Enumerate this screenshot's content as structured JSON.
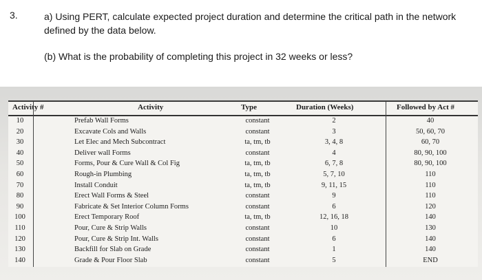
{
  "question": {
    "number": "3.",
    "part_a": "a) Using PERT, calculate expected project duration and determine the critical path in the network defined by the data below.",
    "part_b": "(b) What is the probability of completing this project in 32 weeks or less?"
  },
  "table": {
    "headers": {
      "activity": "Activity #",
      "description": "Activity",
      "type": "Type",
      "duration": "Duration (Weeks)",
      "followed_by": "Followed by Act #"
    },
    "rows": [
      {
        "activity": "10",
        "description": "Prefab Wall Forms",
        "type": "constant",
        "duration": "2",
        "followed_by": "40"
      },
      {
        "activity": "20",
        "description": "Excavate Cols and Walls",
        "type": "constant",
        "duration": "3",
        "followed_by": "50, 60, 70"
      },
      {
        "activity": "30",
        "description": "Let Elec and Mech Subcontract",
        "type": "ta, tm, tb",
        "duration": "3, 4, 8",
        "followed_by": "60, 70"
      },
      {
        "activity": "40",
        "description": "Deliver wall Forms",
        "type": "constant",
        "duration": "4",
        "followed_by": "80, 90, 100"
      },
      {
        "activity": "50",
        "description": "Forms, Pour & Cure Wall & Col Fig",
        "type": "ta, tm, tb",
        "duration": "6, 7, 8",
        "followed_by": "80, 90, 100"
      },
      {
        "activity": "60",
        "description": "Rough-in Plumbing",
        "type": "ta, tm, tb",
        "duration": "5, 7, 10",
        "followed_by": "110"
      },
      {
        "activity": "70",
        "description": "Install Conduit",
        "type": "ta, tm, tb",
        "duration": "9, 11, 15",
        "followed_by": "110"
      },
      {
        "activity": "80",
        "description": "Erect Wall Forms & Steel",
        "type": "constant",
        "duration": "9",
        "followed_by": "110"
      },
      {
        "activity": "90",
        "description": "Fabricate & Set Interior Column Forms",
        "type": "constant",
        "duration": "6",
        "followed_by": "120"
      },
      {
        "activity": "100",
        "description": "Erect Temporary Roof",
        "type": "ta, tm, tb",
        "duration": "12, 16, 18",
        "followed_by": "140"
      },
      {
        "activity": "110",
        "description": "Pour, Cure & Strip Walls",
        "type": "constant",
        "duration": "10",
        "followed_by": "130"
      },
      {
        "activity": "120",
        "description": "Pour, Cure & Strip Int. Walls",
        "type": "constant",
        "duration": "6",
        "followed_by": "140"
      },
      {
        "activity": "130",
        "description": "Backfill for Slab on Grade",
        "type": "constant",
        "duration": "1",
        "followed_by": "140"
      },
      {
        "activity": "140",
        "description": "Grade & Pour Floor Slab",
        "type": "constant",
        "duration": "5",
        "followed_by": "END"
      }
    ]
  }
}
